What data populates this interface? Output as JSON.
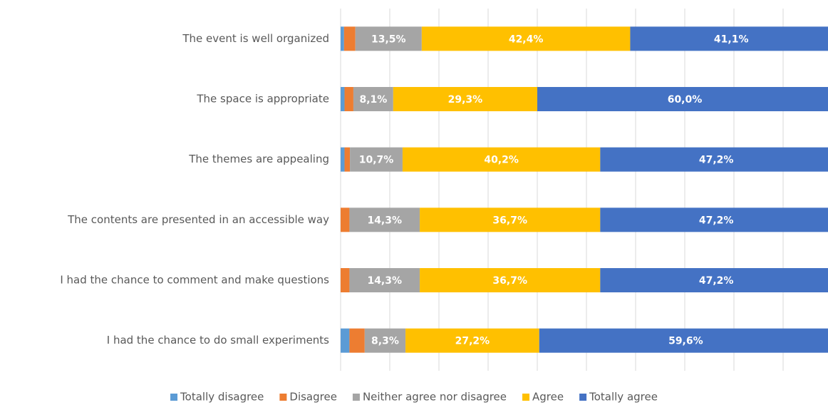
{
  "chart_data": {
    "type": "stacked_bar_horizontal",
    "categories": [
      "The event is well organized",
      "The space is appropriate",
      "The themes are appealing",
      "The contents are presented in an accessible way",
      "I had the chance to comment and make questions",
      "I had the chance to do small experiments"
    ],
    "series": [
      {
        "name": "Totally disagree",
        "color": "#5b9bd5",
        "values": [
          0.7,
          0.8,
          0.8,
          0,
          0,
          1.8
        ],
        "value_labels": [
          null,
          null,
          null,
          null,
          null,
          null
        ]
      },
      {
        "name": "Disagree",
        "color": "#ed7d31",
        "values": [
          2.3,
          1.8,
          1.1,
          1.8,
          1.8,
          3.1
        ],
        "value_labels": [
          null,
          null,
          null,
          null,
          null,
          null
        ]
      },
      {
        "name": "Neither agree nor disagree",
        "color": "#a5a5a5",
        "values": [
          13.5,
          8.1,
          10.7,
          14.3,
          14.3,
          8.3
        ],
        "value_labels": [
          "13,5%",
          "8,1%",
          "10,7%",
          "14,3%",
          "14,3%",
          "8,3%"
        ]
      },
      {
        "name": "Agree",
        "color": "#ffc000",
        "values": [
          42.4,
          29.3,
          40.2,
          36.7,
          36.7,
          27.2
        ],
        "value_labels": [
          "42,4%",
          "29,3%",
          "40,2%",
          "36,7%",
          "36,7%",
          "27,2%"
        ]
      },
      {
        "name": "Totally agree",
        "color": "#4472c4",
        "values": [
          41.1,
          60.0,
          47.2,
          47.2,
          47.2,
          59.6
        ],
        "value_labels": [
          "41,1%",
          "60,0%",
          "47,2%",
          "47,2%",
          "47,2%",
          "59,6%"
        ]
      }
    ],
    "xlim": [
      0,
      100
    ],
    "xticks": [
      0,
      10,
      20,
      30,
      40,
      50,
      60,
      70,
      80,
      90,
      100
    ],
    "grid": true,
    "legend": "bottom"
  }
}
